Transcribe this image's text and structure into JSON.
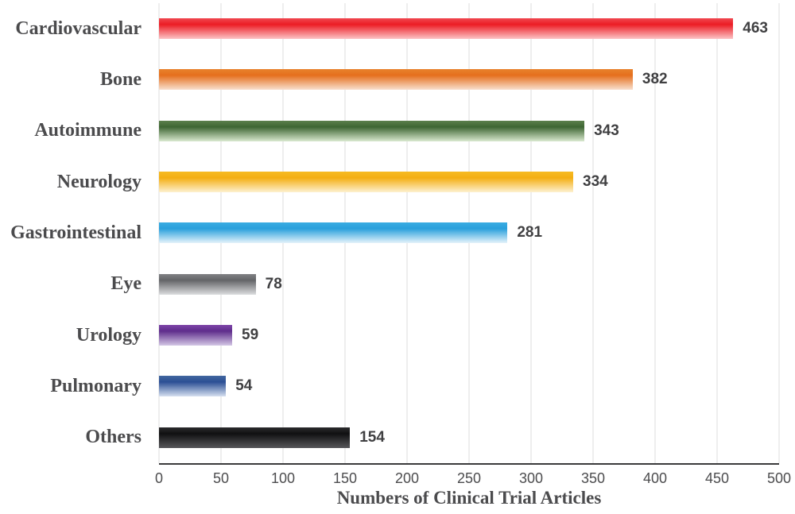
{
  "chart_data": {
    "type": "bar",
    "orientation": "horizontal",
    "title": "",
    "xlabel": "Numbers of Clinical Trial Articles",
    "ylabel": "",
    "xlim": [
      0,
      500
    ],
    "xticks": [
      0,
      50,
      100,
      150,
      200,
      250,
      300,
      350,
      400,
      450,
      500
    ],
    "grid": "vertical",
    "legend": "none",
    "value_labels_shown": true,
    "categories": [
      "Cardiovascular",
      "Bone",
      "Autoimmune",
      "Neurology",
      "Gastrointestinal",
      "Eye",
      "Urology",
      "Pulmonary",
      "Others"
    ],
    "values": [
      463,
      382,
      343,
      334,
      281,
      78,
      59,
      54,
      154
    ],
    "bars": [
      {
        "label": "Cardiovascular",
        "value": 463,
        "color_top": "#f04850",
        "color_mid": "#ec1c24",
        "color_bottom": "#fcc4c6"
      },
      {
        "label": "Bone",
        "value": 382,
        "color_top": "#e8822c",
        "color_mid": "#e56f1d",
        "color_bottom": "#f8e0cf"
      },
      {
        "label": "Autoimmune",
        "value": 343,
        "color_top": "#5c7f4c",
        "color_mid": "#3e6633",
        "color_bottom": "#d9e9cf"
      },
      {
        "label": "Neurology",
        "value": 334,
        "color_top": "#f6bb24",
        "color_mid": "#f4ae12",
        "color_bottom": "#fdf1d0"
      },
      {
        "label": "Gastrointestinal",
        "value": 281,
        "color_top": "#3aace2",
        "color_mid": "#29a0dc",
        "color_bottom": "#e6f3fb"
      },
      {
        "label": "Eye",
        "value": 78,
        "color_top": "#808184",
        "color_mid": "#646568",
        "color_bottom": "#dcdddf"
      },
      {
        "label": "Urology",
        "value": 59,
        "color_top": "#7e44a8",
        "color_mid": "#5f2d8c",
        "color_bottom": "#d4c7e5"
      },
      {
        "label": "Pulmonary",
        "value": 54,
        "color_top": "#41669f",
        "color_mid": "#2b4f94",
        "color_bottom": "#d5dfef"
      },
      {
        "label": "Others",
        "value": 154,
        "color_top": "#2c2c2e",
        "color_mid": "#101011",
        "color_bottom": "#57575a"
      }
    ]
  },
  "colors": {
    "background": "#ffffff",
    "gridline": "#dcdcdc",
    "axis_line": "#3a3a3c",
    "category_text": "#4b4b4d",
    "value_text": "#404042",
    "tick_text": "#4c4c4e"
  }
}
